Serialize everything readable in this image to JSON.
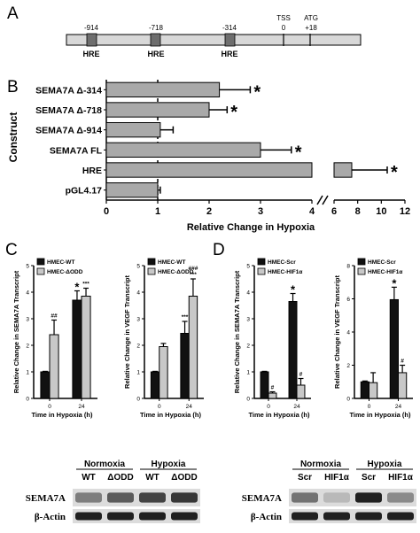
{
  "panel_a": {
    "letter": "A",
    "elements": [
      {
        "pos_label": "-914",
        "hre_label": "HRE"
      },
      {
        "pos_label": "-718",
        "hre_label": "HRE"
      },
      {
        "pos_label": "-314",
        "hre_label": "HRE"
      }
    ],
    "tss": {
      "label": "TSS",
      "value": "0"
    },
    "atg": {
      "label": "ATG",
      "value": "+18"
    }
  },
  "panel_b": {
    "letter": "B",
    "ylabel": "Construct",
    "xlabel": "Relative Change in Hypoxia",
    "ticks_left": [
      "0",
      "1",
      "2",
      "3",
      "4"
    ],
    "ticks_right": [
      "6",
      "8",
      "10",
      "12"
    ],
    "star": "*"
  },
  "panel_c": {
    "letter": "C",
    "left": {
      "ylabel": "Relative Change in SEMA7A Transcript",
      "xlabel": "Time in Hypoxia (h)",
      "legend": [
        "HMEC-WT",
        "HMEC-ΔODD"
      ],
      "yticks": [
        "0",
        "1",
        "2",
        "3",
        "4",
        "5"
      ]
    },
    "right": {
      "ylabel": "Relative Change in VEGF Transcript",
      "xlabel": "Time in Hypoxia (h)",
      "legend": [
        "HMEC-WT",
        "HMEC-ΔODD"
      ],
      "yticks": [
        "0",
        "1",
        "2",
        "3",
        "4",
        "5"
      ]
    },
    "blot": {
      "group_labels": [
        "Normoxia",
        "Hypoxia"
      ],
      "lane_labels": [
        "WT",
        "ΔODD",
        "WT",
        "ΔODD"
      ],
      "rows": [
        "SEMA7A",
        "β-Actin"
      ]
    }
  },
  "panel_d": {
    "letter": "D",
    "left": {
      "ylabel": "Relative Change in SEMA7A Transcript",
      "xlabel": "Time in Hypoxia (h)",
      "legend": [
        "HMEC-Scr",
        "HMEC-HIF1α"
      ],
      "yticks": [
        "0",
        "1",
        "2",
        "3",
        "4",
        "5"
      ]
    },
    "right": {
      "ylabel": "Relative Change in VEGF Transcript",
      "xlabel": "Time in Hypoxia (h)",
      "legend": [
        "HMEC-Scr",
        "HMEC-HIF1α"
      ],
      "yticks": [
        "0",
        "2",
        "4",
        "6",
        "8"
      ]
    },
    "blot": {
      "group_labels": [
        "Normoxia",
        "Hypoxia"
      ],
      "lane_labels": [
        "Scr",
        "HIF1α",
        "Scr",
        "HIF1α"
      ],
      "rows": [
        "SEMA7A",
        "β-Actin"
      ]
    }
  },
  "colors": {
    "bar_gray": "#a9a9a9",
    "bar_black": "#111111",
    "bar_light": "#c8c8c8",
    "region": "#d8d8d8"
  },
  "chart_data": [
    {
      "type": "bar",
      "orientation": "horizontal",
      "panel": "B",
      "xlabel": "Relative Change in Hypoxia",
      "ylabel": "Construct",
      "categories": [
        "SEMA7A Δ-314",
        "SEMA7A Δ-718",
        "SEMA7A Δ-914",
        "SEMA7A FL",
        "HRE",
        "pGL4.17"
      ],
      "values": [
        2.2,
        2.0,
        1.05,
        3.0,
        7.5,
        1.0
      ],
      "errors": [
        0.6,
        0.35,
        0.25,
        0.6,
        3.0,
        0.05
      ],
      "significance": [
        "*",
        "*",
        "",
        "*",
        "*",
        ""
      ],
      "xlim": [
        0,
        12
      ],
      "axis_break": [
        4,
        6
      ],
      "reference_line": 1
    },
    {
      "type": "bar",
      "panel": "C-left",
      "categories": [
        "0",
        "24"
      ],
      "series": [
        {
          "name": "HMEC-WT",
          "values": [
            1.0,
            3.7
          ],
          "errors": [
            0.02,
            0.35
          ],
          "marks": [
            "",
            "*"
          ]
        },
        {
          "name": "HMEC-ΔODD",
          "values": [
            2.4,
            3.85
          ],
          "errors": [
            0.55,
            0.3
          ],
          "marks": [
            "##",
            "***"
          ]
        }
      ],
      "ylim": [
        0,
        5
      ]
    },
    {
      "type": "bar",
      "panel": "C-right",
      "categories": [
        "0",
        "24"
      ],
      "series": [
        {
          "name": "HMEC-WT",
          "values": [
            1.0,
            2.45
          ],
          "errors": [
            0.02,
            0.45
          ],
          "marks": [
            "",
            "***"
          ]
        },
        {
          "name": "HMEC-ΔODD",
          "values": [
            1.95,
            3.85
          ],
          "errors": [
            0.12,
            0.65
          ],
          "marks": [
            "",
            "###\n***"
          ]
        }
      ],
      "ylim": [
        0,
        5
      ]
    },
    {
      "type": "bar",
      "panel": "D-left",
      "categories": [
        "0",
        "24"
      ],
      "series": [
        {
          "name": "HMEC-Scr",
          "values": [
            1.0,
            3.65
          ],
          "errors": [
            0.02,
            0.3
          ],
          "marks": [
            "",
            "*"
          ]
        },
        {
          "name": "HMEC-HIF1α",
          "values": [
            0.2,
            0.5
          ],
          "errors": [
            0.05,
            0.25
          ],
          "marks": [
            "#",
            "#"
          ]
        }
      ],
      "ylim": [
        0,
        5
      ]
    },
    {
      "type": "bar",
      "panel": "D-right",
      "categories": [
        "0",
        "24"
      ],
      "series": [
        {
          "name": "HMEC-Scr",
          "values": [
            1.0,
            5.95
          ],
          "errors": [
            0.05,
            0.75
          ],
          "marks": [
            "",
            "*"
          ]
        },
        {
          "name": "HMEC-HIF1α",
          "values": [
            0.95,
            1.55
          ],
          "errors": [
            0.6,
            0.45
          ],
          "marks": [
            "",
            "#"
          ]
        }
      ],
      "ylim": [
        0,
        8
      ]
    }
  ]
}
